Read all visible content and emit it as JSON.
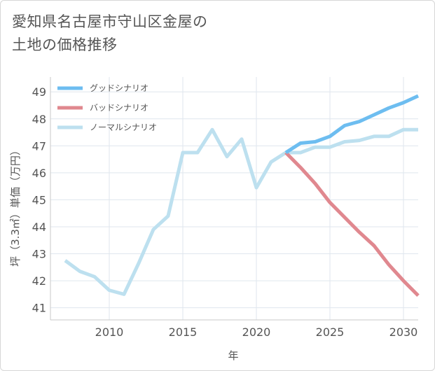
{
  "title_lines": [
    "愛知県名古屋市守山区金屋の",
    "土地の価格推移"
  ],
  "chart_data": {
    "type": "line",
    "xlabel": "年",
    "ylabel": "坪（3.3㎡）単価（万円）",
    "xlim": [
      2006,
      2031
    ],
    "ylim": [
      40.55,
      49.55
    ],
    "xticks": [
      2010,
      2015,
      2020,
      2025,
      2030
    ],
    "yticks": [
      41,
      42,
      43,
      44,
      45,
      46,
      47,
      48,
      49
    ],
    "grid": true,
    "legend_position": "top-left",
    "series": [
      {
        "name": "グッドシナリオ",
        "color": "#6dbdf0",
        "x": [
          2022,
          2023,
          2024,
          2025,
          2026,
          2027,
          2028,
          2029,
          2030,
          2031
        ],
        "values": [
          46.75,
          47.1,
          47.15,
          47.35,
          47.75,
          47.9,
          48.15,
          48.4,
          48.6,
          48.85
        ]
      },
      {
        "name": "バッドシナリオ",
        "color": "#e0888f",
        "x": [
          2022,
          2023,
          2024,
          2025,
          2026,
          2027,
          2028,
          2029,
          2030,
          2031
        ],
        "values": [
          46.75,
          46.2,
          45.6,
          44.9,
          44.35,
          43.8,
          43.3,
          42.6,
          42.0,
          41.45
        ]
      },
      {
        "name": "ノーマルシナリオ",
        "color": "#bde0ef",
        "x": [
          2007,
          2008,
          2009,
          2010,
          2011,
          2012,
          2013,
          2014,
          2015,
          2016,
          2017,
          2018,
          2019,
          2020,
          2021,
          2022,
          2023,
          2024,
          2025,
          2026,
          2027,
          2028,
          2029,
          2030,
          2031
        ],
        "values": [
          42.75,
          42.35,
          42.15,
          41.65,
          41.5,
          42.65,
          43.9,
          44.4,
          46.75,
          46.75,
          47.6,
          46.6,
          47.25,
          45.45,
          46.4,
          46.75,
          46.75,
          46.95,
          46.95,
          47.15,
          47.2,
          47.35,
          47.35,
          47.6,
          47.6
        ]
      }
    ]
  }
}
